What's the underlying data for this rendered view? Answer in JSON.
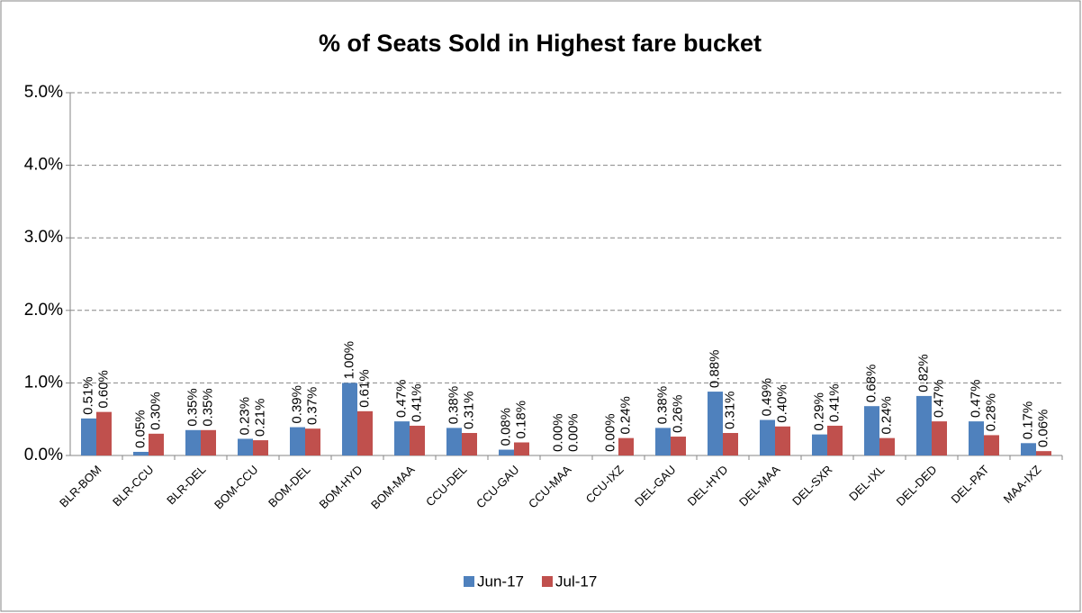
{
  "chart_data": {
    "type": "bar",
    "title": "% of Seats Sold in Highest fare bucket",
    "categories": [
      "BLR-BOM",
      "BLR-CCU",
      "BLR-DEL",
      "BOM-CCU",
      "BOM-DEL",
      "BOM-HYD",
      "BOM-MAA",
      "CCU-DEL",
      "CCU-GAU",
      "CCU-MAA",
      "CCU-IXZ",
      "DEL-GAU",
      "DEL-HYD",
      "DEL-MAA",
      "DEL-SXR",
      "DEL-IXL",
      "DEL-DED",
      "DEL-PAT",
      "MAA-IXZ"
    ],
    "series": [
      {
        "name": "Jun-17",
        "color": "#4f81bd",
        "values": [
          0.51,
          0.05,
          0.35,
          0.23,
          0.39,
          1.0,
          0.47,
          0.38,
          0.08,
          0.0,
          0.0,
          0.38,
          0.88,
          0.49,
          0.29,
          0.68,
          0.82,
          0.47,
          0.17
        ],
        "value_labels": [
          "0.51%",
          "0.05%",
          "0.35%",
          "0.23%",
          "0.39%",
          "1.00%",
          "0.47%",
          "0.38%",
          "0.08%",
          "0.00%",
          "0.00%",
          "0.38%",
          "0.88%",
          "0.49%",
          "0.29%",
          "0.68%",
          "0.82%",
          "0.47%",
          "0.17%"
        ]
      },
      {
        "name": "Jul-17",
        "color": "#c0504d",
        "values": [
          0.6,
          0.3,
          0.35,
          0.21,
          0.37,
          0.61,
          0.41,
          0.31,
          0.18,
          0.0,
          0.24,
          0.26,
          0.31,
          0.4,
          0.41,
          0.24,
          0.47,
          0.28,
          0.06
        ],
        "value_labels": [
          "0.60%",
          "0.30%",
          "0.35%",
          "0.21%",
          "0.37%",
          "0.61%",
          "0.41%",
          "0.31%",
          "0.18%",
          "0.00%",
          "0.24%",
          "0.26%",
          "0.31%",
          "0.40%",
          "0.41%",
          "0.24%",
          "0.47%",
          "0.28%",
          "0.06%"
        ]
      }
    ],
    "ylim": [
      0,
      5
    ],
    "yticks": [
      {
        "value": 0,
        "label": "0.0%"
      },
      {
        "value": 1,
        "label": "1.0%"
      },
      {
        "value": 2,
        "label": "2.0%"
      },
      {
        "value": 3,
        "label": "3.0%"
      },
      {
        "value": 4,
        "label": "4.0%"
      },
      {
        "value": 5,
        "label": "5.0%"
      }
    ],
    "grid": true,
    "legend": "bottom"
  }
}
